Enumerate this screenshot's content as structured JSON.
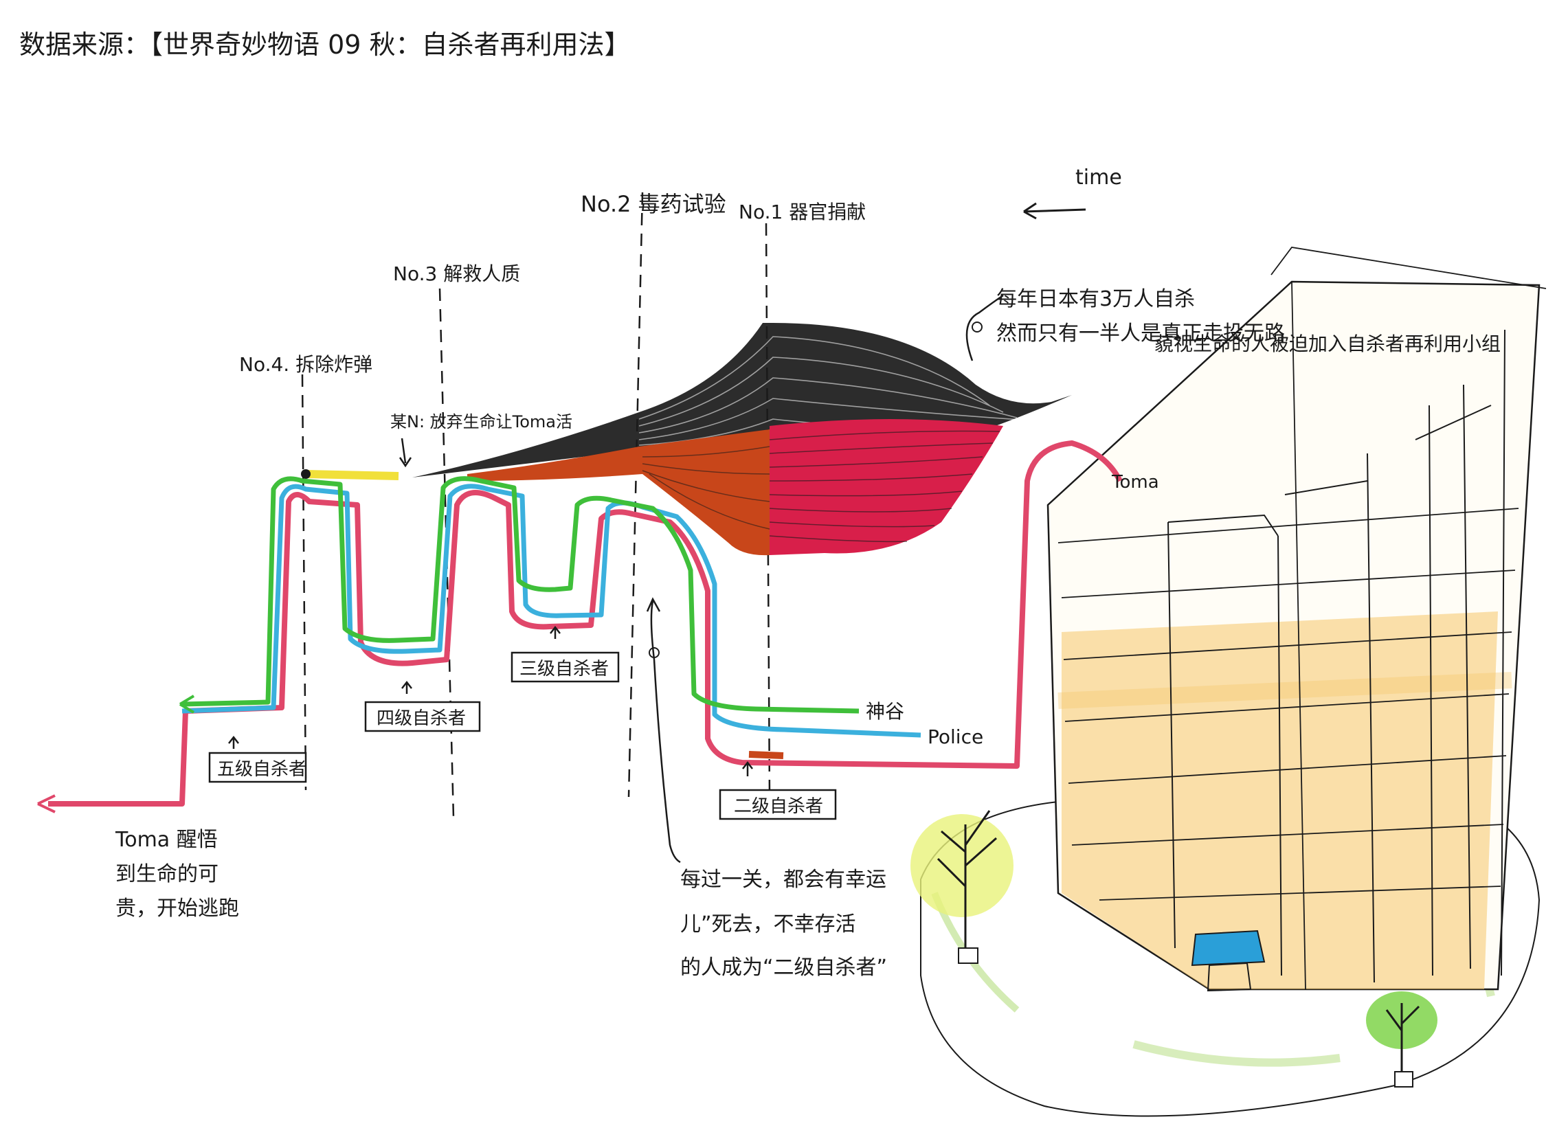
{
  "source_line": "数据来源：【世界奇妙物语 09 秋：自杀者再利用法】",
  "time_label": "time",
  "stages": [
    {
      "label": "No.1 器官捐献"
    },
    {
      "label": "No.2 毒药试验"
    },
    {
      "label": "No.3 解救人质"
    },
    {
      "label": "No.4. 拆除炸弹"
    }
  ],
  "notes": {
    "intro": [
      "每年日本有3万人自杀",
      "然而只有一半人是真正走投无路",
      "藐视生命的人被迫加入自杀者再利用小组"
    ],
    "toma_give_up": "某N: 放弃生命让Toma活",
    "after_each": [
      "每过一关，都会有幸运",
      "儿”死去，不幸存活",
      "的人成为“二级自杀者”"
    ],
    "toma_awake": [
      "Toma 醒悟",
      "到生命的可",
      "贵，开始逃跑"
    ]
  },
  "levels": {
    "level2": "二级自杀者",
    "level3": "三级自杀者",
    "level4": "四级自杀者",
    "level5": "五级自杀者"
  },
  "lines": {
    "toma": "Toma",
    "kamiya": "神谷",
    "police": "Police"
  },
  "colors": {
    "toma": "#e0476a",
    "kamiya": "#3fbf3a",
    "police": "#3bb0dd",
    "black_group": "#1a1a1a",
    "red_group": "#d81f4a",
    "orange_group": "#c8461a",
    "yellow_segment": "#f1e03a",
    "building_orange": "#f5c66a",
    "lawn": "#c8e6a0",
    "awning": "#2a9fd8"
  }
}
